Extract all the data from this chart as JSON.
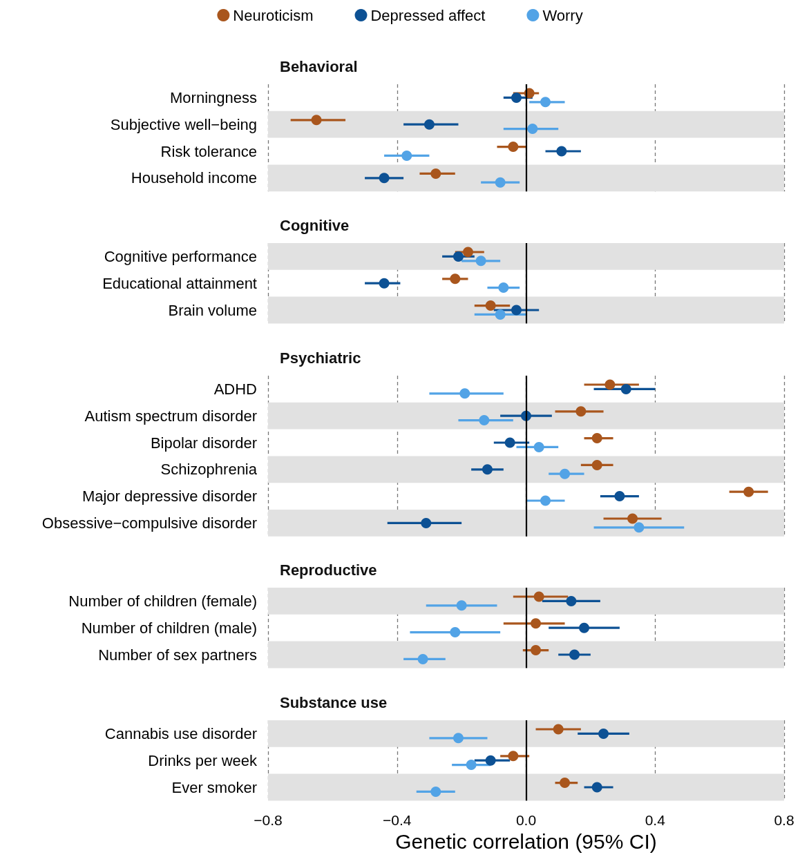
{
  "chart_data": [
    {
      "type": "scatter",
      "orientation": "horizontal",
      "title": "Behavioral",
      "legend": "top",
      "marker": "circle",
      "grid": "x",
      "tick_labels": "y",
      "categories": [
        "Morningness",
        "Subjective well−being",
        "Risk tolerance",
        "Household income"
      ],
      "xlim": [
        -0.8,
        0.8
      ],
      "xticks": [
        {
          "value": -0.8,
          "label": null
        },
        {
          "value": -0.4,
          "label": null
        },
        {
          "value": 0,
          "label": null
        },
        {
          "value": 0.4,
          "label": null
        },
        {
          "value": 0.8,
          "label": null
        }
      ],
      "ref_lines": [
        {
          "axis": "x",
          "value": 0,
          "color": "#000000"
        }
      ],
      "bands": [
        {
          "axis": "y",
          "from": "Subjective well−being",
          "to": "Subjective well−being",
          "color": "#e1e1e1"
        },
        {
          "axis": "y",
          "from": "Household income",
          "to": "Household income",
          "color": "#e1e1e1"
        }
      ],
      "series": [
        {
          "name": "Neuroticism",
          "color": "#a9561d",
          "values": [
            0.01,
            -0.65,
            -0.04,
            -0.28
          ],
          "errors": [
            [
              -0.04,
              0.04
            ],
            [
              -0.73,
              -0.56
            ],
            [
              -0.09,
              0.0
            ],
            [
              -0.33,
              -0.22
            ]
          ]
        },
        {
          "name": "Depressed affect",
          "color": "#0d5194",
          "values": [
            -0.03,
            -0.3,
            0.11,
            -0.44
          ],
          "errors": [
            [
              -0.07,
              0.02
            ],
            [
              -0.38,
              -0.21
            ],
            [
              0.06,
              0.17
            ],
            [
              -0.5,
              -0.38
            ]
          ]
        },
        {
          "name": "Worry",
          "color": "#52a3e6",
          "values": [
            0.06,
            0.02,
            -0.37,
            -0.08
          ],
          "errors": [
            [
              0.01,
              0.12
            ],
            [
              -0.07,
              0.1
            ],
            [
              -0.44,
              -0.3
            ],
            [
              -0.14,
              -0.02
            ]
          ]
        }
      ]
    },
    {
      "type": "scatter",
      "orientation": "horizontal",
      "title": "Cognitive",
      "marker": "circle",
      "grid": "x",
      "tick_labels": "y",
      "categories": [
        "Cognitive performance",
        "Educational attainment",
        "Brain volume"
      ],
      "xlim": [
        -0.8,
        0.8
      ],
      "xticks": [
        {
          "value": -0.8,
          "label": null
        },
        {
          "value": -0.4,
          "label": null
        },
        {
          "value": 0,
          "label": null
        },
        {
          "value": 0.4,
          "label": null
        },
        {
          "value": 0.8,
          "label": null
        }
      ],
      "ref_lines": [
        {
          "axis": "x",
          "value": 0,
          "color": "#000000"
        }
      ],
      "bands": [
        {
          "axis": "y",
          "from": "Cognitive performance",
          "to": "Cognitive performance",
          "color": "#e1e1e1"
        },
        {
          "axis": "y",
          "from": "Brain volume",
          "to": "Brain volume",
          "color": "#e1e1e1"
        }
      ],
      "series": [
        {
          "color": "#a9561d",
          "values": [
            -0.18,
            -0.22,
            -0.11
          ],
          "errors": [
            [
              -0.22,
              -0.13
            ],
            [
              -0.26,
              -0.18
            ],
            [
              -0.16,
              -0.05
            ]
          ]
        },
        {
          "color": "#0d5194",
          "values": [
            -0.21,
            -0.44,
            -0.03
          ],
          "errors": [
            [
              -0.26,
              -0.16
            ],
            [
              -0.5,
              -0.39
            ],
            [
              -0.1,
              0.04
            ]
          ]
        },
        {
          "color": "#52a3e6",
          "values": [
            -0.14,
            -0.07,
            -0.08
          ],
          "errors": [
            [
              -0.2,
              -0.08
            ],
            [
              -0.12,
              -0.02
            ],
            [
              -0.16,
              0.0
            ]
          ]
        }
      ]
    },
    {
      "type": "scatter",
      "orientation": "horizontal",
      "title": "Psychiatric",
      "marker": "circle",
      "grid": "x",
      "tick_labels": "y",
      "categories": [
        "ADHD",
        "Autism spectrum disorder",
        "Bipolar disorder",
        "Schizophrenia",
        "Major depressive disorder",
        "Obsessive−compulsive disorder"
      ],
      "xlim": [
        -0.8,
        0.8
      ],
      "xticks": [
        {
          "value": -0.8,
          "label": null
        },
        {
          "value": -0.4,
          "label": null
        },
        {
          "value": 0,
          "label": null
        },
        {
          "value": 0.4,
          "label": null
        },
        {
          "value": 0.8,
          "label": null
        }
      ],
      "ref_lines": [
        {
          "axis": "x",
          "value": 0,
          "color": "#000000"
        }
      ],
      "bands": [
        {
          "axis": "y",
          "from": "Autism spectrum disorder",
          "to": "Autism spectrum disorder",
          "color": "#e1e1e1"
        },
        {
          "axis": "y",
          "from": "Schizophrenia",
          "to": "Schizophrenia",
          "color": "#e1e1e1"
        },
        {
          "axis": "y",
          "from": "Obsessive−compulsive disorder",
          "to": "Obsessive−compulsive disorder",
          "color": "#e1e1e1"
        }
      ],
      "series": [
        {
          "color": "#a9561d",
          "values": [
            0.26,
            0.17,
            0.22,
            0.22,
            0.69,
            0.33
          ],
          "errors": [
            [
              0.18,
              0.35
            ],
            [
              0.09,
              0.24
            ],
            [
              0.18,
              0.27
            ],
            [
              0.17,
              0.27
            ],
            [
              0.63,
              0.75
            ],
            [
              0.24,
              0.42
            ]
          ]
        },
        {
          "color": "#0d5194",
          "values": [
            0.31,
            0.0,
            -0.05,
            -0.12,
            0.29,
            -0.31
          ],
          "errors": [
            [
              0.21,
              0.4
            ],
            [
              -0.08,
              0.08
            ],
            [
              -0.1,
              0.01
            ],
            [
              -0.17,
              -0.07
            ],
            [
              0.23,
              0.35
            ],
            [
              -0.43,
              -0.2
            ]
          ]
        },
        {
          "color": "#52a3e6",
          "values": [
            -0.19,
            -0.13,
            0.04,
            0.12,
            0.06,
            0.35
          ],
          "errors": [
            [
              -0.3,
              -0.07
            ],
            [
              -0.21,
              -0.04
            ],
            [
              -0.03,
              0.1
            ],
            [
              0.07,
              0.18
            ],
            [
              0.0,
              0.12
            ],
            [
              0.21,
              0.49
            ]
          ]
        }
      ]
    },
    {
      "type": "scatter",
      "orientation": "horizontal",
      "title": "Reproductive",
      "marker": "circle",
      "grid": "x",
      "tick_labels": "y",
      "categories": [
        "Number of children (female)",
        "Number of children (male)",
        "Number of sex partners"
      ],
      "xlim": [
        -0.8,
        0.8
      ],
      "xticks": [
        {
          "value": -0.8,
          "label": null
        },
        {
          "value": -0.4,
          "label": null
        },
        {
          "value": 0,
          "label": null
        },
        {
          "value": 0.4,
          "label": null
        },
        {
          "value": 0.8,
          "label": null
        }
      ],
      "ref_lines": [
        {
          "axis": "x",
          "value": 0,
          "color": "#000000"
        }
      ],
      "bands": [
        {
          "axis": "y",
          "from": "Number of children (female)",
          "to": "Number of children (female)",
          "color": "#e1e1e1"
        },
        {
          "axis": "y",
          "from": "Number of sex partners",
          "to": "Number of sex partners",
          "color": "#e1e1e1"
        }
      ],
      "series": [
        {
          "color": "#a9561d",
          "values": [
            0.04,
            0.03,
            0.03
          ],
          "errors": [
            [
              -0.04,
              0.13
            ],
            [
              -0.07,
              0.12
            ],
            [
              -0.01,
              0.07
            ]
          ]
        },
        {
          "color": "#0d5194",
          "values": [
            0.14,
            0.18,
            0.15
          ],
          "errors": [
            [
              0.05,
              0.23
            ],
            [
              0.07,
              0.29
            ],
            [
              0.1,
              0.2
            ]
          ]
        },
        {
          "color": "#52a3e6",
          "values": [
            -0.2,
            -0.22,
            -0.32
          ],
          "errors": [
            [
              -0.31,
              -0.09
            ],
            [
              -0.36,
              -0.08
            ],
            [
              -0.38,
              -0.25
            ]
          ]
        }
      ]
    },
    {
      "type": "scatter",
      "orientation": "horizontal",
      "title": "Substance use",
      "xlabel": "Genetic correlation (95% CI)",
      "marker": "circle",
      "grid": "x",
      "categories": [
        "Cannabis use disorder",
        "Drinks per week",
        "Ever smoker"
      ],
      "xlim": [
        -0.8,
        0.8
      ],
      "xticks": [
        {
          "value": -0.8,
          "label": "−0.8"
        },
        {
          "value": -0.4,
          "label": "−0.4"
        },
        {
          "value": 0,
          "label": "0.0"
        },
        {
          "value": 0.4,
          "label": "0.4"
        },
        {
          "value": 0.8,
          "label": "0.8"
        }
      ],
      "ref_lines": [
        {
          "axis": "x",
          "value": 0,
          "color": "#000000"
        }
      ],
      "bands": [
        {
          "axis": "y",
          "from": "Cannabis use disorder",
          "to": "Cannabis use disorder",
          "color": "#e1e1e1"
        },
        {
          "axis": "y",
          "from": "Ever smoker",
          "to": "Ever smoker",
          "color": "#e1e1e1"
        }
      ],
      "series": [
        {
          "color": "#a9561d",
          "values": [
            0.1,
            -0.04,
            0.12
          ],
          "errors": [
            [
              0.03,
              0.17
            ],
            [
              -0.08,
              0.01
            ],
            [
              0.09,
              0.16
            ]
          ]
        },
        {
          "color": "#0d5194",
          "values": [
            0.24,
            -0.11,
            0.22
          ],
          "errors": [
            [
              0.16,
              0.32
            ],
            [
              -0.16,
              -0.05
            ],
            [
              0.18,
              0.27
            ]
          ]
        },
        {
          "color": "#52a3e6",
          "values": [
            -0.21,
            -0.17,
            -0.28
          ],
          "errors": [
            [
              -0.3,
              -0.12
            ],
            [
              -0.23,
              -0.11
            ],
            [
              -0.34,
              -0.22
            ]
          ]
        }
      ]
    }
  ]
}
